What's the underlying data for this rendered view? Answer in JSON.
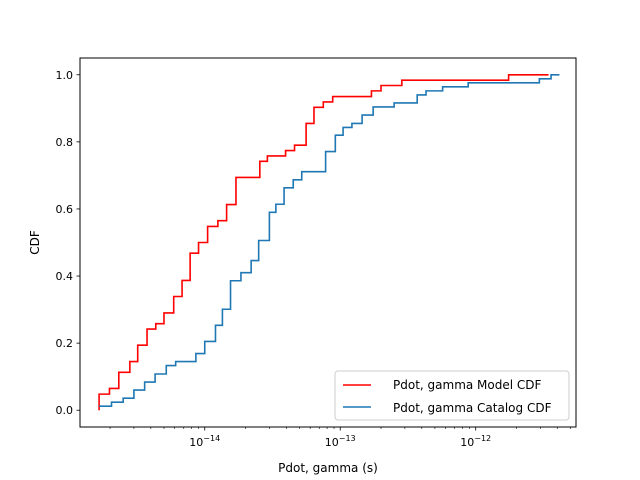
{
  "chart_data": {
    "type": "line",
    "title": "",
    "xlabel": "Pdot, gamma (s)",
    "ylabel": "CDF",
    "xscale": "log",
    "xlim": [
      1.2e-15,
      5.5e-12
    ],
    "ylim": [
      -0.05,
      1.05
    ],
    "grid": false,
    "legend_position": "lower-right",
    "x_ticks": [
      {
        "value": 1e-14,
        "base": "10",
        "exp": "−14"
      },
      {
        "value": 1e-13,
        "base": "10",
        "exp": "−13"
      },
      {
        "value": 1e-12,
        "base": "10",
        "exp": "−12"
      }
    ],
    "y_ticks": [
      {
        "value": 0.0,
        "label": "0.0"
      },
      {
        "value": 0.2,
        "label": "0.2"
      },
      {
        "value": 0.4,
        "label": "0.4"
      },
      {
        "value": 0.6,
        "label": "0.6"
      },
      {
        "value": 0.8,
        "label": "0.8"
      },
      {
        "value": 1.0,
        "label": "1.0"
      }
    ],
    "series": [
      {
        "name": "Pdot, gamma Model CDF",
        "color": "#ff0000",
        "step": true,
        "points": [
          [
            1.66e-15,
            0.0
          ],
          [
            1.66e-15,
            0.048
          ],
          [
            1.98e-15,
            0.065
          ],
          [
            2.32e-15,
            0.113
          ],
          [
            2.8e-15,
            0.145
          ],
          [
            3.2e-15,
            0.194
          ],
          [
            3.75e-15,
            0.242
          ],
          [
            4.35e-15,
            0.258
          ],
          [
            5e-15,
            0.29
          ],
          [
            5.9e-15,
            0.339
          ],
          [
            6.8e-15,
            0.387
          ],
          [
            7.8e-15,
            0.468
          ],
          [
            9e-15,
            0.5
          ],
          [
            1.05e-14,
            0.548
          ],
          [
            1.25e-14,
            0.565
          ],
          [
            1.45e-14,
            0.613
          ],
          [
            1.7e-14,
            0.694
          ],
          [
            2.55e-14,
            0.742
          ],
          [
            2.9e-14,
            0.758
          ],
          [
            3.95e-14,
            0.774
          ],
          [
            4.6e-14,
            0.79
          ],
          [
            5.6e-14,
            0.855
          ],
          [
            6.4e-14,
            0.903
          ],
          [
            7.5e-14,
            0.919
          ],
          [
            8.8e-14,
            0.935
          ],
          [
            1.7e-13,
            0.952
          ],
          [
            2e-13,
            0.968
          ],
          [
            2.85e-13,
            0.984
          ],
          [
            1.75e-12,
            1.0
          ],
          [
            3.45e-12,
            1.0
          ]
        ]
      },
      {
        "name": "Pdot, gamma Catalog CDF",
        "color": "#1f77b4",
        "step": true,
        "points": [
          [
            1.66e-15,
            0.012
          ],
          [
            2.05e-15,
            0.024
          ],
          [
            2.5e-15,
            0.036
          ],
          [
            3e-15,
            0.06
          ],
          [
            3.6e-15,
            0.084
          ],
          [
            4.3e-15,
            0.108
          ],
          [
            5.2e-15,
            0.133
          ],
          [
            6.1e-15,
            0.145
          ],
          [
            8.6e-15,
            0.169
          ],
          [
            1e-14,
            0.205
          ],
          [
            1.2e-14,
            0.253
          ],
          [
            1.35e-14,
            0.301
          ],
          [
            1.55e-14,
            0.386
          ],
          [
            1.85e-14,
            0.41
          ],
          [
            2.2e-14,
            0.446
          ],
          [
            2.5e-14,
            0.506
          ],
          [
            3e-14,
            0.59
          ],
          [
            3.35e-14,
            0.614
          ],
          [
            3.85e-14,
            0.663
          ],
          [
            4.5e-14,
            0.687
          ],
          [
            5.2e-14,
            0.711
          ],
          [
            7.8e-14,
            0.771
          ],
          [
            9.2e-14,
            0.82
          ],
          [
            1.05e-13,
            0.843
          ],
          [
            1.22e-13,
            0.855
          ],
          [
            1.45e-13,
            0.88
          ],
          [
            1.75e-13,
            0.904
          ],
          [
            2.5e-13,
            0.916
          ],
          [
            3.7e-13,
            0.94
          ],
          [
            4.3e-13,
            0.952
          ],
          [
            5.7e-13,
            0.964
          ],
          [
            8.8e-13,
            0.976
          ],
          [
            2.95e-12,
            0.988
          ],
          [
            3.6e-12,
            1.0
          ],
          [
            4.15e-12,
            1.0
          ]
        ]
      }
    ]
  }
}
